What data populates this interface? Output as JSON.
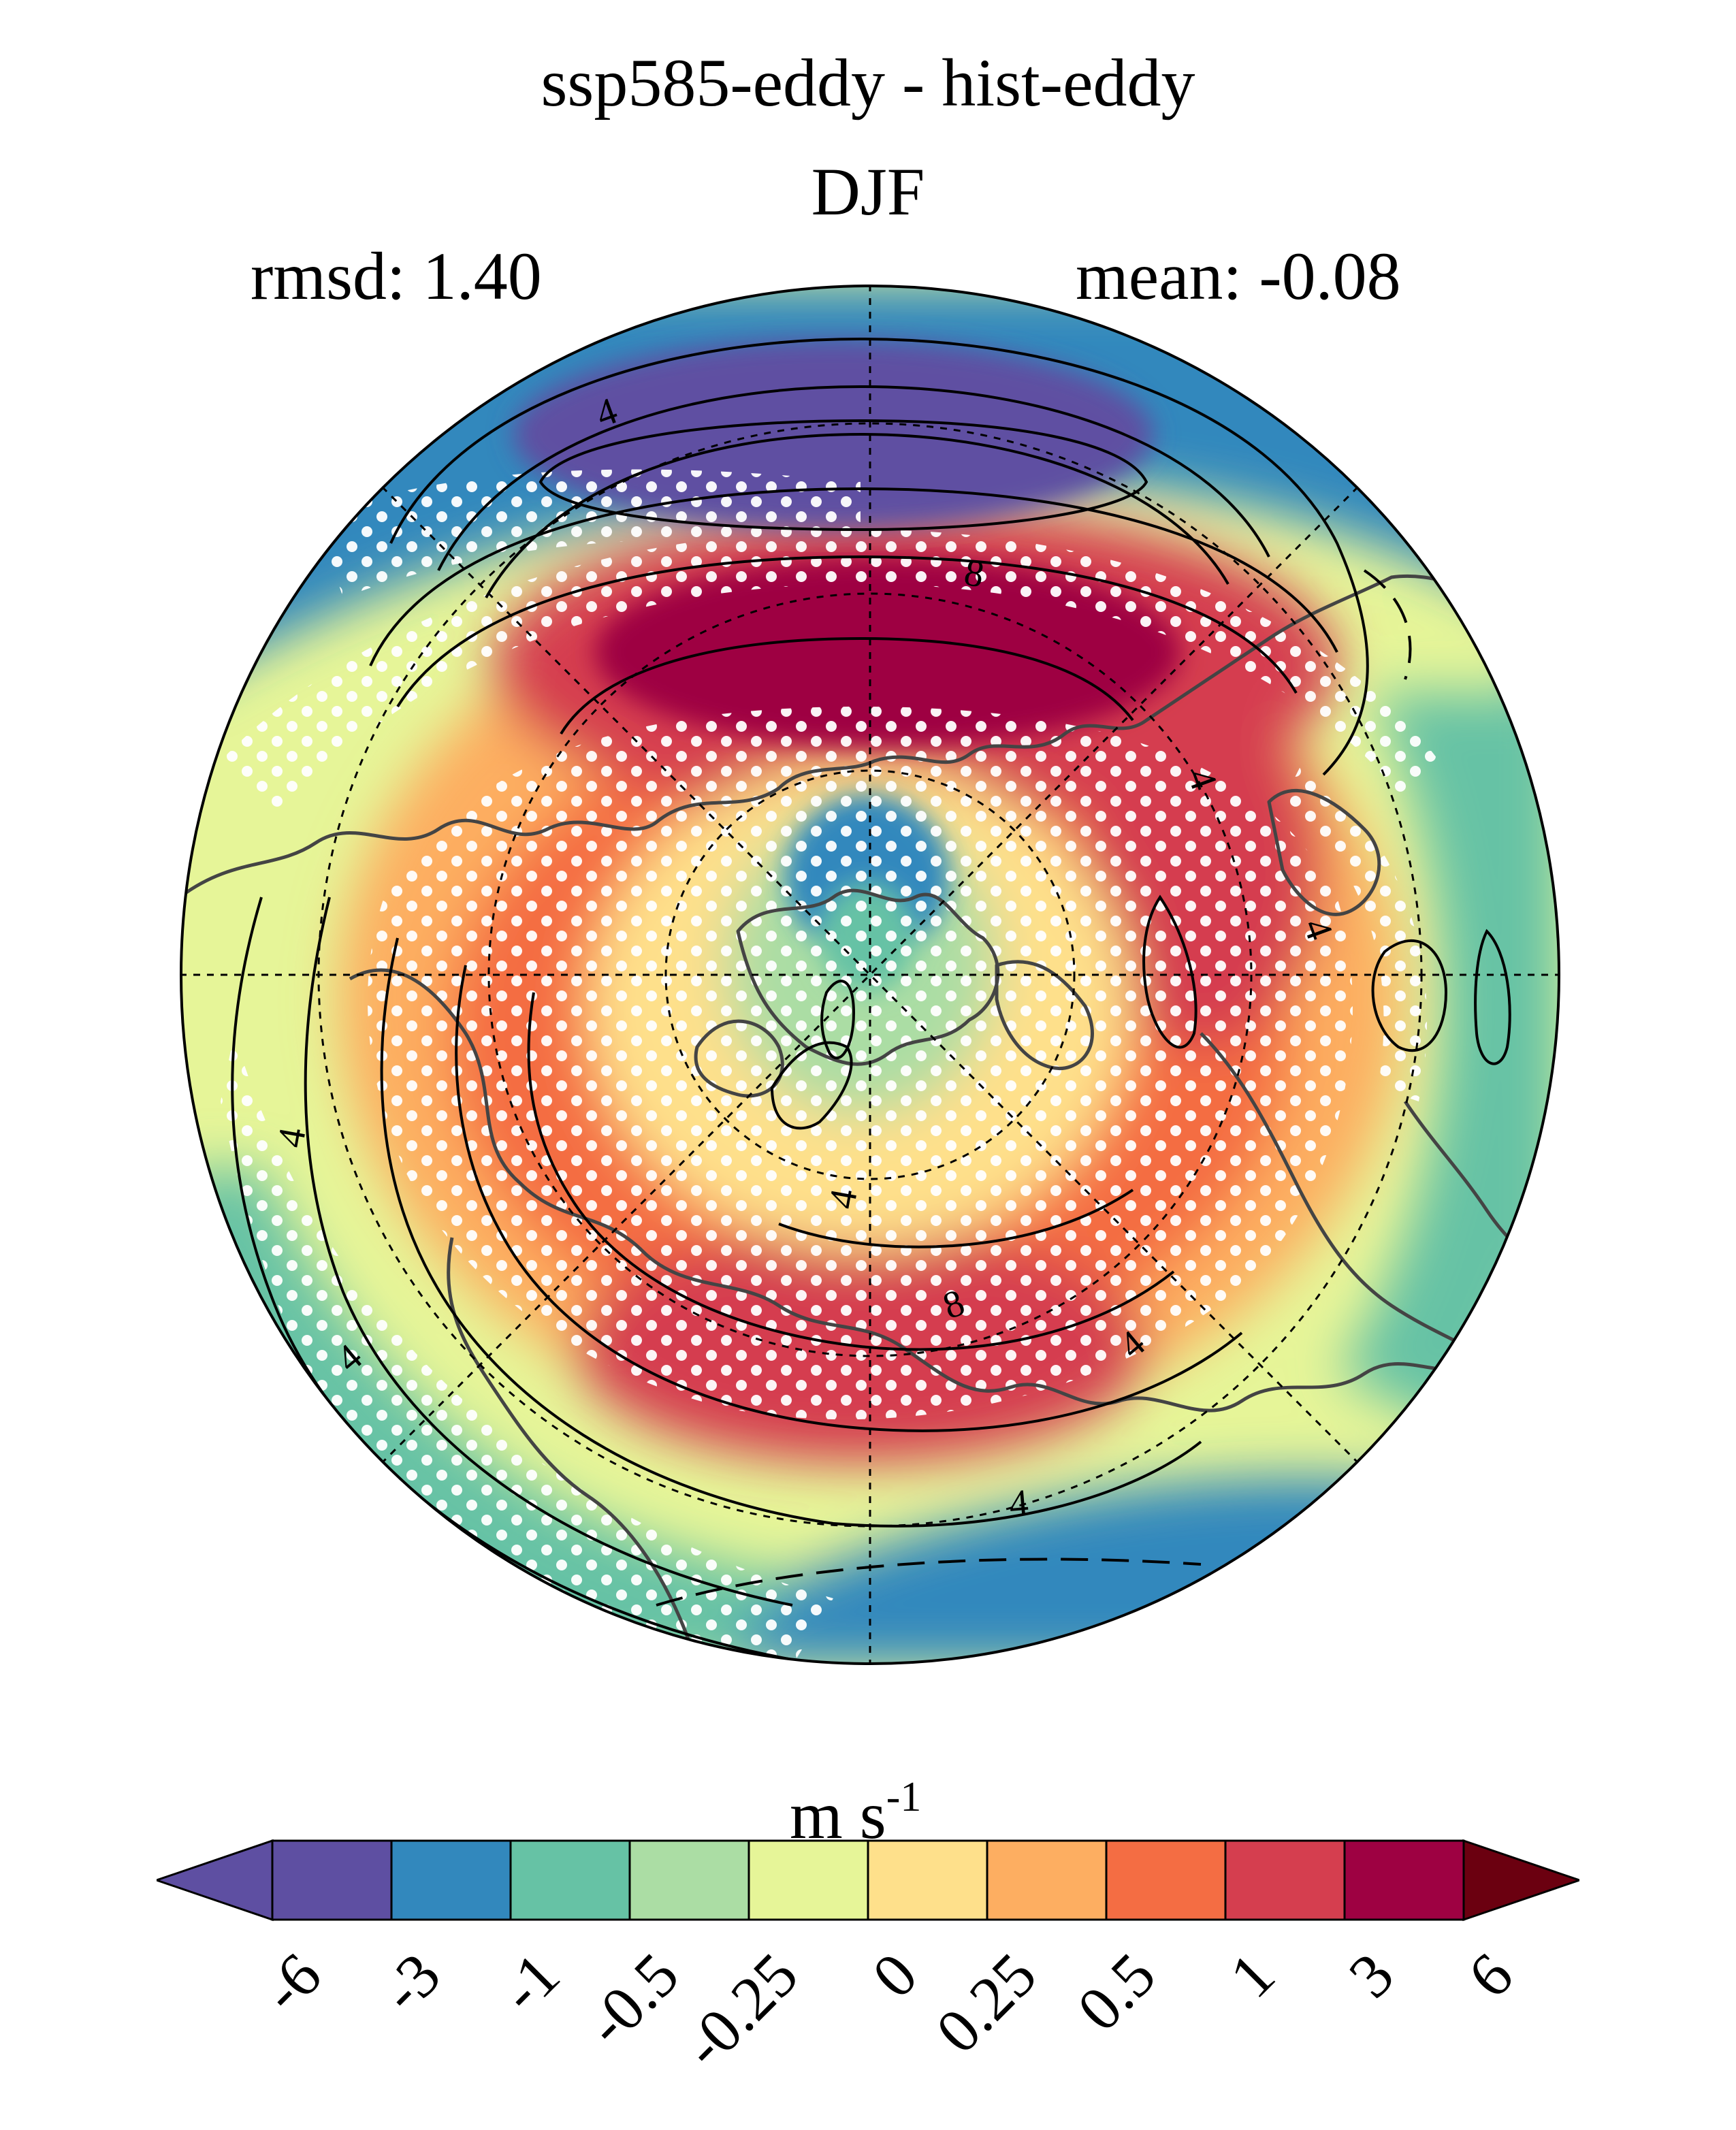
{
  "title": "ssp585-eddy - hist-eddy",
  "season": "DJF",
  "stats": {
    "rmsd_label": "rmsd: 1.40",
    "mean_label": "mean: -0.08"
  },
  "map": {
    "projection": "north polar stereographic",
    "contour_labels": [
      "4",
      "8",
      "4",
      "4",
      "4",
      "4",
      "8",
      "4",
      "4",
      "4"
    ]
  },
  "colorbar": {
    "units_main": "m s",
    "units_exp": "-1",
    "levels": [
      "-6",
      "-3",
      "-1",
      "-0.5",
      "-0.25",
      "0",
      "0.25",
      "0.5",
      "1",
      "3",
      "6"
    ],
    "colors": [
      "#5e4fa2",
      "#3288bd",
      "#66c2a5",
      "#abdda4",
      "#e6f598",
      "#fee08b",
      "#fdae61",
      "#f46d43",
      "#d53e4f",
      "#9e0142"
    ],
    "under_color": "#5e4fa2",
    "over_color": "#6b0010"
  }
}
